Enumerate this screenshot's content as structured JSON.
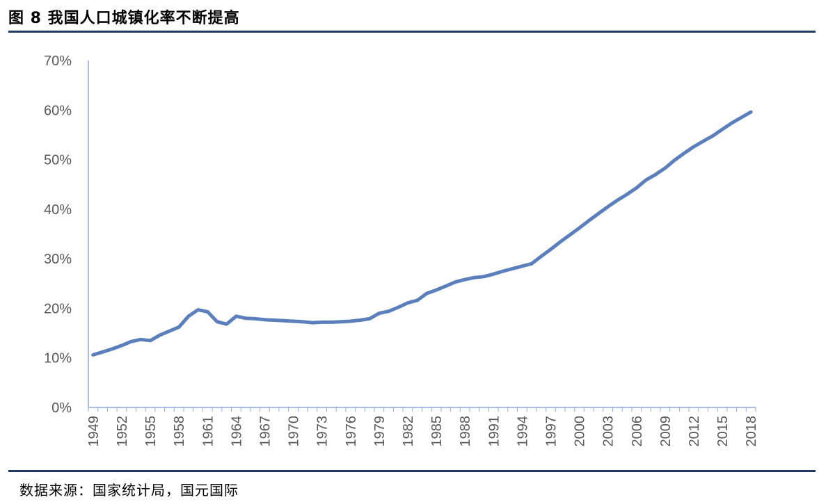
{
  "header": {
    "title": "图 8   我国人口城镇化率不断提高"
  },
  "footer": {
    "source": "数据来源：国家统计局，国元国际"
  },
  "colors": {
    "line": "#5b7fbc",
    "rule": "#1f3864",
    "axis": "#8ea9db"
  },
  "chart_data": {
    "type": "line",
    "title": "",
    "xlabel": "",
    "ylabel": "",
    "ylim": [
      0,
      70
    ],
    "y_unit": "%",
    "yticks": [
      "0%",
      "10%",
      "20%",
      "30%",
      "40%",
      "50%",
      "60%",
      "70%"
    ],
    "xticks": [
      "1949",
      "1952",
      "1955",
      "1958",
      "1961",
      "1964",
      "1967",
      "1970",
      "1973",
      "1976",
      "1979",
      "1982",
      "1985",
      "1988",
      "1991",
      "1994",
      "1997",
      "2000",
      "2003",
      "2006",
      "2009",
      "2012",
      "2015",
      "2018"
    ],
    "grid": false,
    "legend": "none",
    "series": [
      {
        "x": [
          1949,
          1950,
          1951,
          1952,
          1953,
          1954,
          1955,
          1956,
          1957,
          1958,
          1959,
          1960,
          1961,
          1962,
          1963,
          1964,
          1965,
          1966,
          1967,
          1968,
          1969,
          1970,
          1971,
          1972,
          1973,
          1974,
          1975,
          1976,
          1977,
          1978,
          1979,
          1980,
          1981,
          1982,
          1983,
          1984,
          1985,
          1986,
          1987,
          1988,
          1989,
          1990,
          1991,
          1992,
          1993,
          1994,
          1995,
          1996,
          1997,
          1998,
          1999,
          2000,
          2001,
          2002,
          2003,
          2004,
          2005,
          2006,
          2007,
          2008,
          2009,
          2010,
          2011,
          2012,
          2013,
          2014,
          2015,
          2016,
          2017,
          2018
        ],
        "values": [
          10.6,
          11.2,
          11.8,
          12.5,
          13.3,
          13.7,
          13.5,
          14.6,
          15.4,
          16.2,
          18.4,
          19.7,
          19.3,
          17.3,
          16.8,
          18.4,
          18.0,
          17.9,
          17.7,
          17.6,
          17.5,
          17.4,
          17.3,
          17.1,
          17.2,
          17.2,
          17.3,
          17.4,
          17.6,
          17.9,
          19.0,
          19.4,
          20.2,
          21.1,
          21.6,
          23.0,
          23.7,
          24.5,
          25.3,
          25.8,
          26.2,
          26.4,
          26.9,
          27.5,
          28.0,
          28.5,
          29.0,
          30.5,
          31.9,
          33.4,
          34.8,
          36.2,
          37.7,
          39.1,
          40.5,
          41.8,
          43.0,
          44.3,
          45.9,
          47.0,
          48.3,
          49.9,
          51.3,
          52.6,
          53.7,
          54.8,
          56.1,
          57.4,
          58.5,
          59.6
        ]
      }
    ]
  }
}
